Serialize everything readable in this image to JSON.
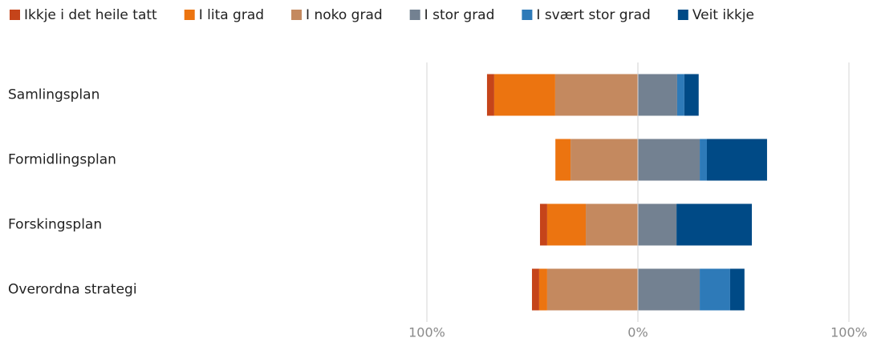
{
  "chart_data": {
    "type": "diverging-bar",
    "categories": [
      "Samlingsplan",
      "Formidlingsplan",
      "Forskingsplan",
      "Overordna strategi"
    ],
    "series": [
      {
        "name": "Ikkje i det heile tatt",
        "color": "#c5441a",
        "values": [
          -3.4,
          0,
          -3.4,
          -3.4
        ]
      },
      {
        "name": "I lita grad",
        "color": "#ec7410",
        "values": [
          -28.9,
          -7.2,
          -18.3,
          -3.8
        ]
      },
      {
        "name": "I noko grad",
        "color": "#c4895f",
        "values": [
          -39.2,
          -31.9,
          -24.7,
          -43.0
        ]
      },
      {
        "name": "I stor grad",
        "color": "#738191",
        "values": [
          18.6,
          29.3,
          18.3,
          29.3
        ]
      },
      {
        "name": "I svært stor grad",
        "color": "#2e7ab8",
        "values": [
          3.4,
          3.4,
          0,
          14.4
        ]
      },
      {
        "name": "Veit ikkje",
        "color": "#004a86",
        "values": [
          6.8,
          28.5,
          35.7,
          6.8
        ]
      }
    ],
    "xlim": [
      -100,
      100
    ],
    "xticks": [
      {
        "value": -100,
        "label": "100%"
      },
      {
        "value": 0,
        "label": "0%"
      },
      {
        "value": 100,
        "label": "100%"
      }
    ],
    "grid": true,
    "legend": "top"
  }
}
